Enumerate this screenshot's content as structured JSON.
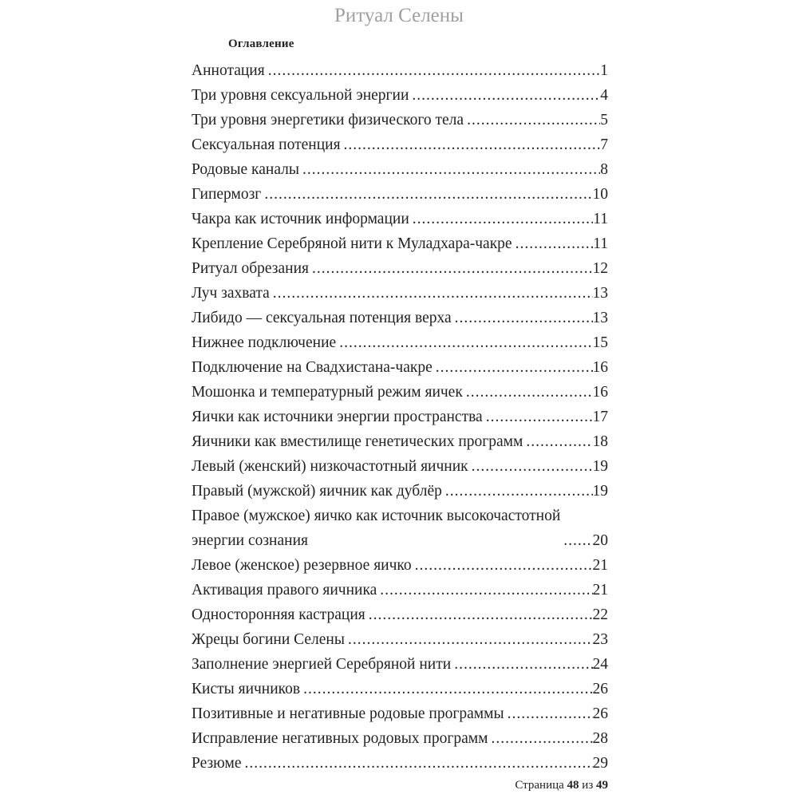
{
  "document": {
    "title": "Ритуал Селены",
    "toc": {
      "heading": "Оглавление",
      "leader_char": ".",
      "entries": [
        {
          "title": "Аннотация",
          "page": "1"
        },
        {
          "title": "Три уровня сексуальной энергии",
          "page": "4"
        },
        {
          "title": "Три уровня энергетики физического тела",
          "page": "5"
        },
        {
          "title": "Сексуальная потенция",
          "page": "7"
        },
        {
          "title": "Родовые каналы",
          "page": "8"
        },
        {
          "title": "Гипермозг",
          "page": "10"
        },
        {
          "title": "Чакра как источник информации",
          "page": "11"
        },
        {
          "title": "Крепление Серебряной нити к Муладхара-чакре",
          "page": "11"
        },
        {
          "title": "Ритуал обрезания",
          "page": "12"
        },
        {
          "title": "Луч захвата",
          "page": "13"
        },
        {
          "title": "Либидо — сексуальная потенция верха",
          "page": "13"
        },
        {
          "title": "Нижнее подключение",
          "page": "15"
        },
        {
          "title": "Подключение на Свадхистана-чакре",
          "page": "16"
        },
        {
          "title": "Мошонка и температурный режим яичек",
          "page": "16"
        },
        {
          "title": "Яички как источники энергии пространства",
          "page": "17"
        },
        {
          "title": "Яичники как вместилище генетических программ",
          "page": "18"
        },
        {
          "title": "Левый (женский) низкочастотный яичник",
          "page": "19"
        },
        {
          "title": "Правый (мужской) яичник как дублёр",
          "page": "19"
        },
        {
          "title": "Правое (мужское) яичко как источник высокочастотной\nэнергии сознания",
          "page": "20"
        },
        {
          "title": "Левое (женское) резервное яичко",
          "page": "21"
        },
        {
          "title": "Активация правого яичника",
          "page": "21"
        },
        {
          "title": "Односторонняя кастрация",
          "page": "22"
        },
        {
          "title": "Жрецы богини Селены",
          "page": "23"
        },
        {
          "title": "Заполнение энергией Серебряной нити",
          "page": "24"
        },
        {
          "title": "Кисты яичников",
          "page": "26"
        },
        {
          "title": "Позитивные и негативные родовые программы",
          "page": "26"
        },
        {
          "title": "Исправление негативных родовых программ",
          "page": "28"
        },
        {
          "title": "Резюме",
          "page": "29"
        }
      ]
    },
    "footer": {
      "label": "Страница",
      "current_page": "48",
      "of_label": "из",
      "total_pages": "49"
    },
    "colors": {
      "title_gray": "#a0a0a0",
      "text": "#232323",
      "background": "#ffffff"
    }
  }
}
